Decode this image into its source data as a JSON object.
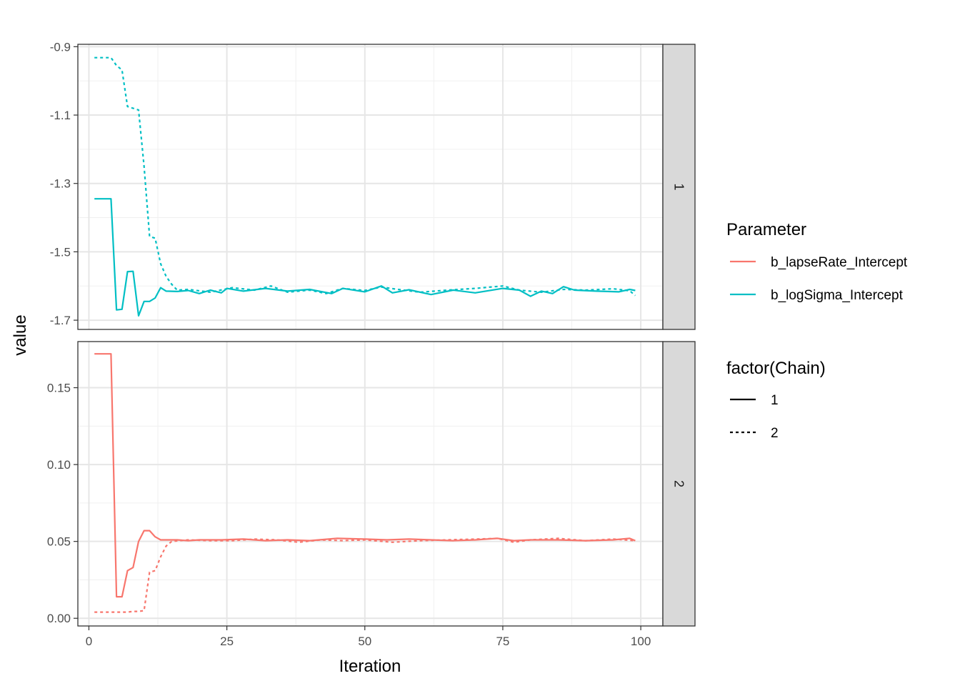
{
  "chart_data": {
    "type": "line",
    "xlabel": "Iteration",
    "ylabel": "value",
    "x_ticks": [
      0,
      25,
      50,
      75,
      100
    ],
    "xlim": [
      -2,
      104
    ],
    "grid": true,
    "legend_placement": "right",
    "colors": {
      "b_lapseRate_Intercept": "#F8766D",
      "b_logSigma_Intercept": "#00BFC4"
    },
    "legends": [
      {
        "title": "Parameter",
        "entries": [
          {
            "label": "b_lapseRate_Intercept",
            "color": "#F8766D"
          },
          {
            "label": "b_logSigma_Intercept",
            "color": "#00BFC4"
          }
        ]
      },
      {
        "title": "factor(Chain)",
        "entries": [
          {
            "label": "1",
            "linetype": "solid"
          },
          {
            "label": "2",
            "linetype": "dashed"
          }
        ]
      }
    ],
    "panels": [
      {
        "strip": "1",
        "ylim": [
          -1.727,
          -0.893
        ],
        "y_ticks": [
          -0.9,
          -1.1,
          -1.3,
          -1.5,
          -1.7
        ],
        "y_tick_labels": [
          "-0.9",
          "-1.1",
          "-1.3",
          "-1.5",
          "-1.7"
        ],
        "series": [
          {
            "parameter": "b_logSigma_Intercept",
            "chain": "1",
            "points": [
              [
                1,
                -1.345
              ],
              [
                2,
                -1.345
              ],
              [
                3,
                -1.345
              ],
              [
                4,
                -1.345
              ],
              [
                5,
                -1.67
              ],
              [
                6,
                -1.668
              ],
              [
                7,
                -1.558
              ],
              [
                8,
                -1.557
              ],
              [
                9,
                -1.687
              ],
              [
                10,
                -1.645
              ],
              [
                11,
                -1.645
              ],
              [
                12,
                -1.635
              ],
              [
                13,
                -1.605
              ],
              [
                14,
                -1.615
              ],
              [
                16,
                -1.616
              ],
              [
                18,
                -1.613
              ],
              [
                20,
                -1.622
              ],
              [
                22,
                -1.612
              ],
              [
                24,
                -1.62
              ],
              [
                25,
                -1.607
              ],
              [
                28,
                -1.615
              ],
              [
                32,
                -1.607
              ],
              [
                36,
                -1.615
              ],
              [
                40,
                -1.61
              ],
              [
                44,
                -1.622
              ],
              [
                46,
                -1.607
              ],
              [
                50,
                -1.617
              ],
              [
                53,
                -1.6
              ],
              [
                55,
                -1.62
              ],
              [
                58,
                -1.611
              ],
              [
                62,
                -1.625
              ],
              [
                66,
                -1.612
              ],
              [
                70,
                -1.62
              ],
              [
                75,
                -1.607
              ],
              [
                78,
                -1.612
              ],
              [
                80,
                -1.63
              ],
              [
                82,
                -1.615
              ],
              [
                84,
                -1.622
              ],
              [
                86,
                -1.602
              ],
              [
                88,
                -1.612
              ],
              [
                92,
                -1.615
              ],
              [
                96,
                -1.617
              ],
              [
                98,
                -1.61
              ],
              [
                99,
                -1.613
              ]
            ]
          },
          {
            "parameter": "b_logSigma_Intercept",
            "chain": "2",
            "points": [
              [
                1,
                -0.932
              ],
              [
                2,
                -0.932
              ],
              [
                3,
                -0.932
              ],
              [
                4,
                -0.932
              ],
              [
                5,
                -0.955
              ],
              [
                6,
                -0.968
              ],
              [
                7,
                -1.075
              ],
              [
                8,
                -1.08
              ],
              [
                9,
                -1.085
              ],
              [
                10,
                -1.25
              ],
              [
                11,
                -1.455
              ],
              [
                12,
                -1.46
              ],
              [
                13,
                -1.535
              ],
              [
                14,
                -1.572
              ],
              [
                15,
                -1.595
              ],
              [
                16,
                -1.612
              ],
              [
                18,
                -1.61
              ],
              [
                22,
                -1.618
              ],
              [
                26,
                -1.605
              ],
              [
                30,
                -1.612
              ],
              [
                33,
                -1.6
              ],
              [
                36,
                -1.618
              ],
              [
                40,
                -1.612
              ],
              [
                43,
                -1.622
              ],
              [
                46,
                -1.607
              ],
              [
                50,
                -1.613
              ],
              [
                53,
                -1.603
              ],
              [
                56,
                -1.61
              ],
              [
                60,
                -1.618
              ],
              [
                65,
                -1.612
              ],
              [
                70,
                -1.607
              ],
              [
                75,
                -1.6
              ],
              [
                78,
                -1.612
              ],
              [
                82,
                -1.618
              ],
              [
                86,
                -1.61
              ],
              [
                90,
                -1.612
              ],
              [
                95,
                -1.608
              ],
              [
                98,
                -1.614
              ],
              [
                99,
                -1.628
              ]
            ]
          }
        ]
      },
      {
        "strip": "2",
        "ylim": [
          -0.005,
          0.18
        ],
        "y_ticks": [
          0.0,
          0.05,
          0.1,
          0.15
        ],
        "y_tick_labels": [
          "0.00",
          "0.05",
          "0.10",
          "0.15"
        ],
        "series": [
          {
            "parameter": "b_lapseRate_Intercept",
            "chain": "1",
            "points": [
              [
                1,
                0.172
              ],
              [
                2,
                0.172
              ],
              [
                3,
                0.172
              ],
              [
                4,
                0.172
              ],
              [
                5,
                0.014
              ],
              [
                6,
                0.014
              ],
              [
                7,
                0.031
              ],
              [
                8,
                0.033
              ],
              [
                9,
                0.05
              ],
              [
                10,
                0.057
              ],
              [
                11,
                0.057
              ],
              [
                12,
                0.053
              ],
              [
                13,
                0.051
              ],
              [
                14,
                0.051
              ],
              [
                16,
                0.051
              ],
              [
                18,
                0.0505
              ],
              [
                20,
                0.051
              ],
              [
                24,
                0.051
              ],
              [
                28,
                0.0515
              ],
              [
                32,
                0.0505
              ],
              [
                36,
                0.051
              ],
              [
                40,
                0.0505
              ],
              [
                45,
                0.052
              ],
              [
                50,
                0.0515
              ],
              [
                54,
                0.051
              ],
              [
                58,
                0.0515
              ],
              [
                62,
                0.051
              ],
              [
                66,
                0.0505
              ],
              [
                70,
                0.051
              ],
              [
                74,
                0.052
              ],
              [
                77,
                0.0505
              ],
              [
                80,
                0.051
              ],
              [
                85,
                0.051
              ],
              [
                90,
                0.0505
              ],
              [
                95,
                0.051
              ],
              [
                98,
                0.052
              ],
              [
                99,
                0.0505
              ]
            ]
          },
          {
            "parameter": "b_lapseRate_Intercept",
            "chain": "2",
            "points": [
              [
                1,
                0.004
              ],
              [
                2,
                0.004
              ],
              [
                3,
                0.004
              ],
              [
                4,
                0.004
              ],
              [
                5,
                0.004
              ],
              [
                6,
                0.004
              ],
              [
                7,
                0.004
              ],
              [
                8,
                0.0045
              ],
              [
                9,
                0.0045
              ],
              [
                10,
                0.005
              ],
              [
                11,
                0.03
              ],
              [
                12,
                0.031
              ],
              [
                13,
                0.04
              ],
              [
                14,
                0.047
              ],
              [
                15,
                0.05
              ],
              [
                18,
                0.051
              ],
              [
                22,
                0.0505
              ],
              [
                26,
                0.0505
              ],
              [
                30,
                0.0515
              ],
              [
                34,
                0.051
              ],
              [
                38,
                0.0495
              ],
              [
                42,
                0.051
              ],
              [
                46,
                0.0505
              ],
              [
                50,
                0.051
              ],
              [
                55,
                0.0495
              ],
              [
                60,
                0.0505
              ],
              [
                65,
                0.051
              ],
              [
                70,
                0.0515
              ],
              [
                74,
                0.052
              ],
              [
                77,
                0.0495
              ],
              [
                80,
                0.051
              ],
              [
                85,
                0.052
              ],
              [
                90,
                0.0505
              ],
              [
                95,
                0.0515
              ],
              [
                99,
                0.0505
              ]
            ]
          }
        ]
      }
    ]
  }
}
